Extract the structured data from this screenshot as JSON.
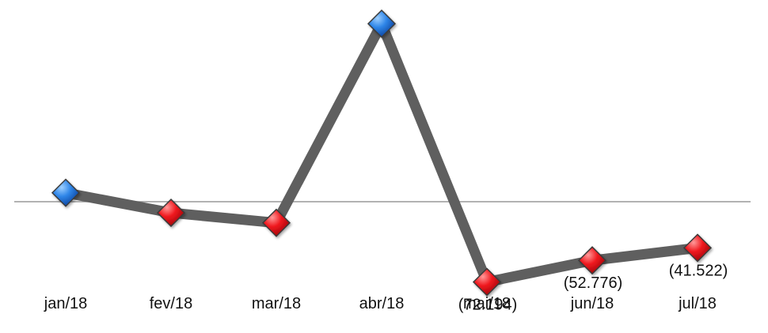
{
  "chart_data": {
    "type": "line",
    "categories": [
      "jan/18",
      "fev/18",
      "mar/18",
      "abr/18",
      "mai/18",
      "jun/18",
      "jul/18"
    ],
    "values": [
      8000,
      -10000,
      -19000,
      160000,
      -72194,
      -52776,
      -41522
    ],
    "data_labels": [
      "",
      "",
      "",
      "",
      "(72.194)",
      "(52.776)",
      "(41.522)"
    ],
    "ylim": [
      -90000,
      175000
    ],
    "zero_line": true,
    "grid": false,
    "legend": "none",
    "colors": {
      "line": "#5f5f5f",
      "positive_marker": "#1f6fd6",
      "negative_marker": "#e8141c",
      "zero_line": "#999999"
    }
  }
}
